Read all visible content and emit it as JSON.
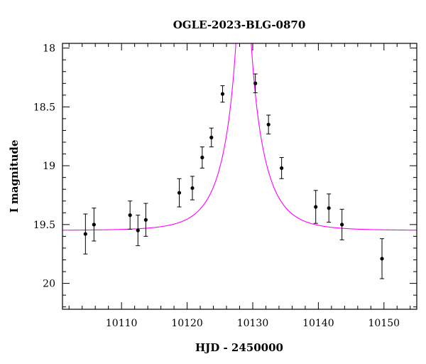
{
  "chart_data": {
    "type": "scatter",
    "title": "OGLE-2023-BLG-0870",
    "xlabel": "HJD - 2450000",
    "ylabel": "I magnitude",
    "xlim": [
      10101,
      10155
    ],
    "ylim": [
      20.22,
      17.96
    ],
    "y_inverted": true,
    "grid": false,
    "x_ticks": [
      10110,
      10120,
      10130,
      10140,
      10150
    ],
    "x_tick_labels": [
      "10110",
      "10120",
      "10130",
      "10140",
      "10150"
    ],
    "x_minor_step": 2,
    "y_ticks": [
      18,
      18.5,
      19,
      19.5,
      20
    ],
    "y_tick_labels": [
      "18",
      "18.5",
      "19",
      "19.5",
      "20"
    ],
    "y_minor_step": 0.1,
    "colors": {
      "points": "#000000",
      "model": "#ff00ff",
      "axes": "#000000"
    },
    "series": [
      {
        "kind": "points-with-errorbars",
        "x": [
          10104.5,
          10105.8,
          10111.3,
          10112.5,
          10113.7,
          10118.8,
          10120.8,
          10122.3,
          10123.7,
          10125.4,
          10130.4,
          10132.4,
          10134.4,
          10139.6,
          10141.6,
          10143.6,
          10149.7
        ],
        "y": [
          19.58,
          19.5,
          19.42,
          19.55,
          19.46,
          19.23,
          19.19,
          18.93,
          18.76,
          18.39,
          18.3,
          18.65,
          19.02,
          19.35,
          19.36,
          19.5,
          19.79
        ],
        "err": [
          0.17,
          0.14,
          0.12,
          0.13,
          0.14,
          0.12,
          0.1,
          0.09,
          0.08,
          0.07,
          0.08,
          0.08,
          0.09,
          0.14,
          0.12,
          0.13,
          0.17
        ]
      },
      {
        "kind": "model-curve",
        "t0": 10128.6,
        "u0": 0.03,
        "tE": 5.0,
        "baseline_mag": 19.55
      }
    ]
  }
}
